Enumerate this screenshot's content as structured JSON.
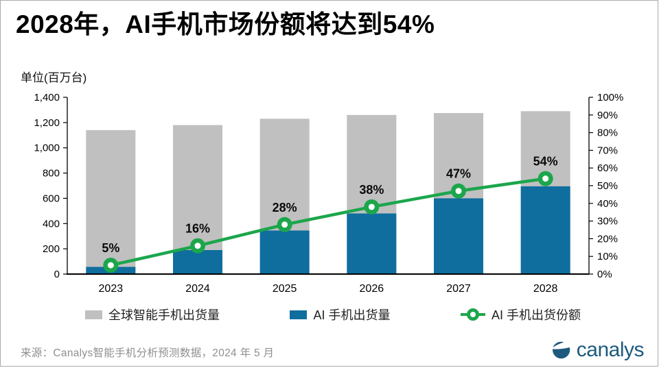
{
  "page": {
    "title": "2028年，AI手机市场份额将达到54%"
  },
  "chart_data": {
    "type": "bar+line",
    "title": "2028年，AI手机市场份额将达到54%",
    "unit_label": "单位(百万台)",
    "categories": [
      "2023",
      "2024",
      "2025",
      "2026",
      "2027",
      "2028"
    ],
    "series": [
      {
        "name": "全球智能手机出货量",
        "type": "bar",
        "axis": "left",
        "color": "#C0C0C0",
        "values": [
          1140,
          1180,
          1230,
          1260,
          1275,
          1290
        ]
      },
      {
        "name": "AI 手机出货量",
        "type": "bar",
        "axis": "left",
        "color": "#0F6E9E",
        "values": [
          57,
          190,
          345,
          480,
          600,
          695
        ]
      },
      {
        "name": "AI 手机出货份额",
        "type": "line",
        "axis": "right",
        "color": "#1CA64C",
        "values": [
          5,
          16,
          28,
          38,
          47,
          54
        ],
        "unit": "%",
        "labels": [
          "5%",
          "16%",
          "28%",
          "38%",
          "47%",
          "54%"
        ]
      }
    ],
    "left_axis": {
      "min": 0,
      "max": 1400,
      "step": 200,
      "tick_labels": [
        "0",
        "200",
        "400",
        "600",
        "800",
        "1,000",
        "1,200",
        "1,400"
      ]
    },
    "right_axis": {
      "min": 0,
      "max": 100,
      "step": 10,
      "suffix": "%",
      "tick_labels": [
        "0%",
        "10%",
        "20%",
        "30%",
        "40%",
        "50%",
        "60%",
        "70%",
        "80%",
        "90%",
        "100%"
      ]
    },
    "grid": false,
    "legend_position": "bottom"
  },
  "footer": {
    "source": "来源：Canalys智能手机分析预测数据，2024 年 5 月",
    "logo_text": "canalys"
  },
  "colors": {
    "bar_global": "#C0C0C0",
    "bar_ai": "#0F6E9E",
    "line_share": "#1CA64C",
    "axis": "#000000",
    "source_text": "#8f8f8f",
    "logo_blue": "#1d5a7e",
    "frame_border": "#aaaaaa"
  },
  "icons": {
    "logo_icon": "canalys-ball-icon"
  }
}
